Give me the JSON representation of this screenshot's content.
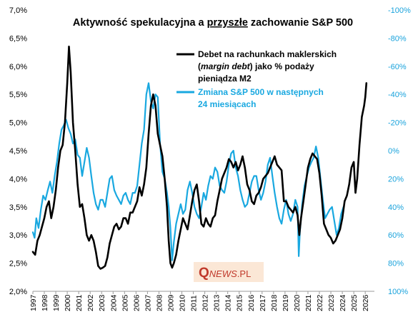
{
  "chart_data": {
    "type": "line",
    "title_parts": [
      "Aktywność spekulacyjna a ",
      "przyszłe",
      " zachowanie S&P 500"
    ],
    "left_axis": {
      "ylim": [
        2.0,
        7.0
      ],
      "ticks": [
        "2,0%",
        "2,5%",
        "3,0%",
        "3,5%",
        "4,0%",
        "4,5%",
        "5,0%",
        "5,5%",
        "6,0%",
        "6,5%",
        "7,0%"
      ]
    },
    "right_axis": {
      "inverted": true,
      "ylim": [
        100,
        -100
      ],
      "ticks": [
        "-100%",
        "-80%",
        "-60%",
        "-40%",
        "-20%",
        "0%",
        "20%",
        "40%",
        "60%",
        "80%",
        "100%"
      ]
    },
    "x_ticks": [
      "1997",
      "1998",
      "1999",
      "2000",
      "2001",
      "2002",
      "2003",
      "2004",
      "2005",
      "2006",
      "2007",
      "2008",
      "2009",
      "2010",
      "2011",
      "2012",
      "2013",
      "2014",
      "2015",
      "2016",
      "2017",
      "2018",
      "2019",
      "2020",
      "2021",
      "2022",
      "2023",
      "2024",
      "2025",
      "2026"
    ],
    "xlim": [
      1997.0,
      2026.8
    ],
    "legend": {
      "black_line1": "Debet na rachunkach maklerskich",
      "black_line2_italic": "margin debt",
      "black_line2_pre": "(",
      "black_line2_post": ") jako % podaży",
      "black_line3": "pieniądza M2",
      "blue_line1": "Zmiana S&P 500 w następnych",
      "blue_line2": "24 miesiącach"
    },
    "logo": {
      "q": "Q",
      "news": "NEWS",
      "pl": ".PL"
    },
    "series": [
      {
        "axis": "left",
        "color": "#000000",
        "points": [
          [
            1997.0,
            2.7
          ],
          [
            1997.2,
            2.65
          ],
          [
            1997.4,
            2.9
          ],
          [
            1997.6,
            3.0
          ],
          [
            1997.8,
            3.15
          ],
          [
            1998.0,
            3.3
          ],
          [
            1998.2,
            3.5
          ],
          [
            1998.4,
            3.6
          ],
          [
            1998.6,
            3.3
          ],
          [
            1998.8,
            3.5
          ],
          [
            1999.0,
            3.8
          ],
          [
            1999.2,
            4.2
          ],
          [
            1999.4,
            4.5
          ],
          [
            1999.6,
            4.6
          ],
          [
            1999.8,
            5.0
          ],
          [
            2000.0,
            5.7
          ],
          [
            2000.15,
            6.35
          ],
          [
            2000.3,
            5.9
          ],
          [
            2000.5,
            5.0
          ],
          [
            2000.7,
            4.5
          ],
          [
            2000.9,
            3.9
          ],
          [
            2001.1,
            3.5
          ],
          [
            2001.3,
            3.55
          ],
          [
            2001.5,
            3.3
          ],
          [
            2001.7,
            3.0
          ],
          [
            2001.9,
            2.9
          ],
          [
            2002.1,
            3.0
          ],
          [
            2002.3,
            2.9
          ],
          [
            2002.5,
            2.7
          ],
          [
            2002.7,
            2.45
          ],
          [
            2002.9,
            2.4
          ],
          [
            2003.1,
            2.42
          ],
          [
            2003.3,
            2.45
          ],
          [
            2003.5,
            2.6
          ],
          [
            2003.7,
            2.85
          ],
          [
            2003.9,
            3.0
          ],
          [
            2004.1,
            3.15
          ],
          [
            2004.3,
            3.2
          ],
          [
            2004.5,
            3.1
          ],
          [
            2004.7,
            3.15
          ],
          [
            2004.9,
            3.3
          ],
          [
            2005.1,
            3.3
          ],
          [
            2005.3,
            3.2
          ],
          [
            2005.5,
            3.4
          ],
          [
            2005.7,
            3.4
          ],
          [
            2005.9,
            3.5
          ],
          [
            2006.1,
            3.6
          ],
          [
            2006.3,
            3.85
          ],
          [
            2006.5,
            3.7
          ],
          [
            2006.7,
            3.9
          ],
          [
            2006.9,
            4.2
          ],
          [
            2007.1,
            4.8
          ],
          [
            2007.3,
            5.3
          ],
          [
            2007.5,
            5.5
          ],
          [
            2007.7,
            5.3
          ],
          [
            2007.9,
            4.8
          ],
          [
            2008.1,
            4.6
          ],
          [
            2008.3,
            4.4
          ],
          [
            2008.5,
            4.0
          ],
          [
            2008.7,
            3.5
          ],
          [
            2008.85,
            2.9
          ],
          [
            2009.0,
            2.5
          ],
          [
            2009.15,
            2.42
          ],
          [
            2009.3,
            2.5
          ],
          [
            2009.5,
            2.65
          ],
          [
            2009.7,
            2.9
          ],
          [
            2009.9,
            3.1
          ],
          [
            2010.1,
            3.3
          ],
          [
            2010.3,
            3.2
          ],
          [
            2010.5,
            3.1
          ],
          [
            2010.7,
            3.35
          ],
          [
            2010.9,
            3.6
          ],
          [
            2011.1,
            3.8
          ],
          [
            2011.3,
            3.9
          ],
          [
            2011.5,
            3.6
          ],
          [
            2011.7,
            3.2
          ],
          [
            2011.9,
            3.15
          ],
          [
            2012.1,
            3.3
          ],
          [
            2012.3,
            3.2
          ],
          [
            2012.5,
            3.15
          ],
          [
            2012.7,
            3.3
          ],
          [
            2012.9,
            3.35
          ],
          [
            2013.1,
            3.6
          ],
          [
            2013.3,
            3.8
          ],
          [
            2013.5,
            4.0
          ],
          [
            2013.7,
            4.1
          ],
          [
            2013.9,
            4.2
          ],
          [
            2014.1,
            4.35
          ],
          [
            2014.3,
            4.3
          ],
          [
            2014.5,
            4.2
          ],
          [
            2014.7,
            4.3
          ],
          [
            2014.9,
            4.15
          ],
          [
            2015.1,
            4.25
          ],
          [
            2015.3,
            4.4
          ],
          [
            2015.5,
            4.2
          ],
          [
            2015.7,
            3.9
          ],
          [
            2015.9,
            3.8
          ],
          [
            2016.1,
            3.6
          ],
          [
            2016.3,
            3.55
          ],
          [
            2016.5,
            3.7
          ],
          [
            2016.7,
            3.75
          ],
          [
            2016.9,
            3.85
          ],
          [
            2017.1,
            4.0
          ],
          [
            2017.3,
            4.05
          ],
          [
            2017.5,
            4.1
          ],
          [
            2017.7,
            4.2
          ],
          [
            2017.9,
            4.3
          ],
          [
            2018.1,
            4.4
          ],
          [
            2018.3,
            4.25
          ],
          [
            2018.5,
            4.2
          ],
          [
            2018.7,
            4.15
          ],
          [
            2018.9,
            3.6
          ],
          [
            2019.1,
            3.6
          ],
          [
            2019.3,
            3.5
          ],
          [
            2019.5,
            3.45
          ],
          [
            2019.7,
            3.4
          ],
          [
            2019.9,
            3.5
          ],
          [
            2020.1,
            3.35
          ],
          [
            2020.25,
            3.0
          ],
          [
            2020.4,
            3.3
          ],
          [
            2020.6,
            3.6
          ],
          [
            2020.8,
            3.9
          ],
          [
            2021.0,
            4.2
          ],
          [
            2021.2,
            4.35
          ],
          [
            2021.4,
            4.45
          ],
          [
            2021.6,
            4.4
          ],
          [
            2021.8,
            4.35
          ],
          [
            2022.0,
            4.1
          ],
          [
            2022.2,
            3.7
          ],
          [
            2022.4,
            3.2
          ],
          [
            2022.6,
            3.1
          ],
          [
            2022.8,
            3.0
          ],
          [
            2023.0,
            2.95
          ],
          [
            2023.2,
            2.85
          ],
          [
            2023.4,
            2.9
          ],
          [
            2023.6,
            3.0
          ],
          [
            2023.8,
            3.1
          ],
          [
            2024.0,
            3.3
          ],
          [
            2024.2,
            3.6
          ],
          [
            2024.4,
            3.7
          ],
          [
            2024.6,
            3.9
          ],
          [
            2024.8,
            4.2
          ],
          [
            2025.0,
            4.3
          ],
          [
            2025.15,
            3.75
          ],
          [
            2025.3,
            4.0
          ],
          [
            2025.5,
            4.6
          ],
          [
            2025.7,
            5.1
          ],
          [
            2025.9,
            5.3
          ],
          [
            2026.0,
            5.45
          ],
          [
            2026.1,
            5.7
          ]
        ]
      },
      {
        "axis": "right",
        "color": "#19a8e0",
        "points": [
          [
            1997.0,
            58
          ],
          [
            1997.15,
            62
          ],
          [
            1997.3,
            48
          ],
          [
            1997.5,
            55
          ],
          [
            1997.7,
            42
          ],
          [
            1997.9,
            32
          ],
          [
            1998.1,
            35
          ],
          [
            1998.3,
            28
          ],
          [
            1998.5,
            22
          ],
          [
            1998.7,
            30
          ],
          [
            1998.9,
            18
          ],
          [
            1999.1,
            8
          ],
          [
            1999.3,
            -5
          ],
          [
            1999.5,
            -15
          ],
          [
            1999.7,
            -18
          ],
          [
            1999.9,
            -22
          ],
          [
            2000.1,
            -16
          ],
          [
            2000.3,
            -12
          ],
          [
            2000.5,
            -5
          ],
          [
            2000.7,
            -8
          ],
          [
            2000.9,
            3
          ],
          [
            2001.1,
            5
          ],
          [
            2001.3,
            18
          ],
          [
            2001.5,
            8
          ],
          [
            2001.7,
            -2
          ],
          [
            2001.9,
            5
          ],
          [
            2002.1,
            18
          ],
          [
            2002.3,
            30
          ],
          [
            2002.5,
            38
          ],
          [
            2002.7,
            42
          ],
          [
            2002.9,
            35
          ],
          [
            2003.1,
            35
          ],
          [
            2003.3,
            40
          ],
          [
            2003.5,
            30
          ],
          [
            2003.7,
            20
          ],
          [
            2003.9,
            18
          ],
          [
            2004.1,
            28
          ],
          [
            2004.3,
            32
          ],
          [
            2004.5,
            35
          ],
          [
            2004.7,
            38
          ],
          [
            2004.9,
            32
          ],
          [
            2005.1,
            30
          ],
          [
            2005.3,
            35
          ],
          [
            2005.5,
            38
          ],
          [
            2005.7,
            30
          ],
          [
            2005.9,
            30
          ],
          [
            2006.1,
            25
          ],
          [
            2006.3,
            10
          ],
          [
            2006.5,
            -5
          ],
          [
            2006.7,
            -15
          ],
          [
            2006.9,
            -40
          ],
          [
            2007.1,
            -48
          ],
          [
            2007.3,
            -35
          ],
          [
            2007.5,
            -30
          ],
          [
            2007.7,
            -40
          ],
          [
            2007.9,
            -38
          ],
          [
            2008.1,
            -5
          ],
          [
            2008.3,
            15
          ],
          [
            2008.5,
            20
          ],
          [
            2008.7,
            30
          ],
          [
            2008.85,
            40
          ],
          [
            2009.0,
            55
          ],
          [
            2009.15,
            78
          ],
          [
            2009.3,
            65
          ],
          [
            2009.5,
            52
          ],
          [
            2009.7,
            45
          ],
          [
            2009.9,
            38
          ],
          [
            2010.1,
            45
          ],
          [
            2010.3,
            42
          ],
          [
            2010.5,
            28
          ],
          [
            2010.7,
            22
          ],
          [
            2010.9,
            30
          ],
          [
            2011.1,
            40
          ],
          [
            2011.3,
            45
          ],
          [
            2011.5,
            48
          ],
          [
            2011.7,
            40
          ],
          [
            2011.9,
            30
          ],
          [
            2012.1,
            35
          ],
          [
            2012.3,
            25
          ],
          [
            2012.5,
            18
          ],
          [
            2012.7,
            20
          ],
          [
            2012.9,
            12
          ],
          [
            2013.1,
            15
          ],
          [
            2013.3,
            25
          ],
          [
            2013.5,
            28
          ],
          [
            2013.7,
            30
          ],
          [
            2013.9,
            22
          ],
          [
            2014.1,
            10
          ],
          [
            2014.3,
            2
          ],
          [
            2014.5,
            0
          ],
          [
            2014.7,
            12
          ],
          [
            2014.9,
            18
          ],
          [
            2015.1,
            28
          ],
          [
            2015.3,
            35
          ],
          [
            2015.5,
            40
          ],
          [
            2015.7,
            38
          ],
          [
            2015.9,
            30
          ],
          [
            2016.1,
            22
          ],
          [
            2016.3,
            18
          ],
          [
            2016.5,
            18
          ],
          [
            2016.7,
            28
          ],
          [
            2016.9,
            35
          ],
          [
            2017.1,
            30
          ],
          [
            2017.3,
            22
          ],
          [
            2017.5,
            10
          ],
          [
            2017.7,
            5
          ],
          [
            2017.9,
            18
          ],
          [
            2018.1,
            30
          ],
          [
            2018.3,
            40
          ],
          [
            2018.5,
            48
          ],
          [
            2018.7,
            52
          ],
          [
            2018.9,
            42
          ],
          [
            2019.1,
            35
          ],
          [
            2019.3,
            45
          ],
          [
            2019.5,
            50
          ],
          [
            2019.7,
            45
          ],
          [
            2019.9,
            35
          ],
          [
            2020.1,
            40
          ],
          [
            2020.2,
            75
          ],
          [
            2020.3,
            58
          ],
          [
            2020.5,
            38
          ],
          [
            2020.7,
            25
          ],
          [
            2020.9,
            18
          ],
          [
            2021.1,
            12
          ],
          [
            2021.3,
            8
          ],
          [
            2021.5,
            5
          ],
          [
            2021.7,
            -3
          ],
          [
            2021.9,
            5
          ],
          [
            2022.1,
            20
          ],
          [
            2022.3,
            35
          ],
          [
            2022.5,
            48
          ],
          [
            2022.7,
            45
          ],
          [
            2022.9,
            42
          ],
          [
            2023.1,
            40
          ],
          [
            2023.3,
            50
          ],
          [
            2023.5,
            60
          ],
          [
            2023.7,
            55
          ],
          [
            2023.9,
            45
          ],
          [
            2024.1,
            40
          ]
        ]
      }
    ]
  }
}
